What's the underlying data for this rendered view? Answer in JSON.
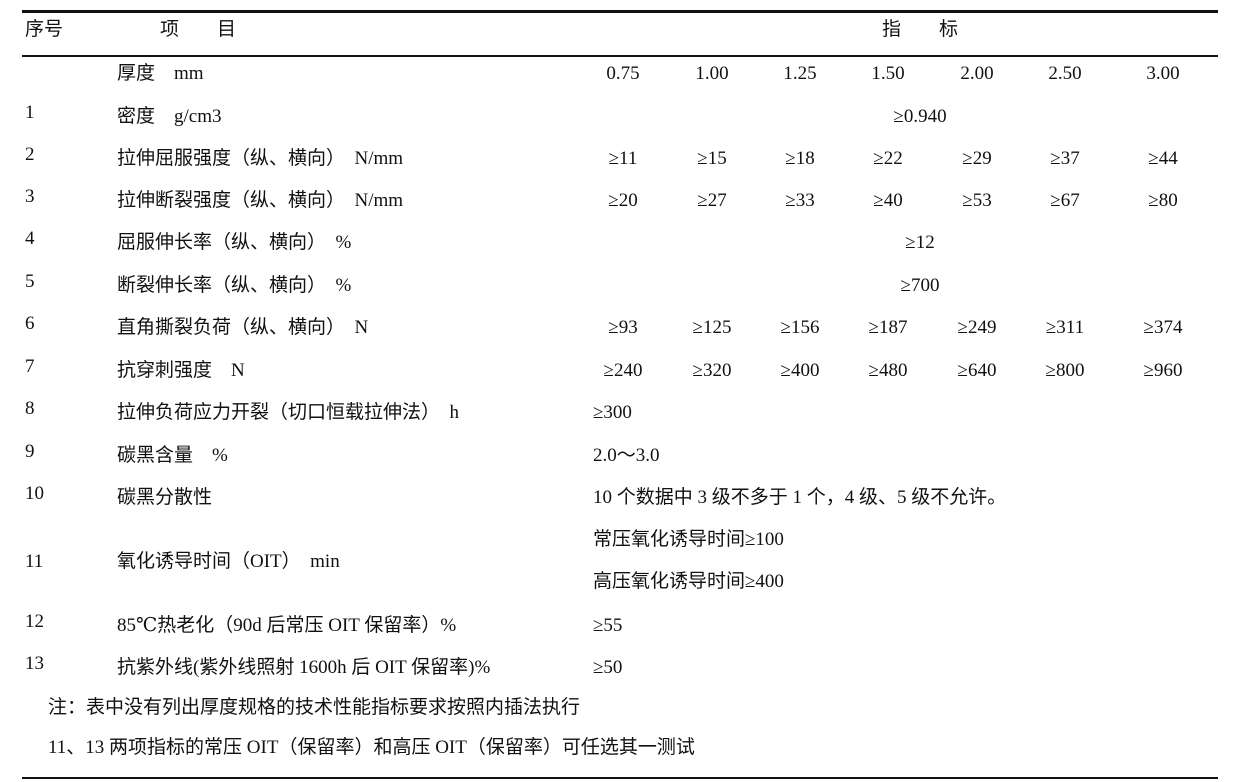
{
  "header": {
    "no": "序号",
    "item": "项　　目",
    "spec": "指　　标"
  },
  "thickness": {
    "label": "厚度　mm",
    "values": [
      "0.75",
      "1.00",
      "1.25",
      "1.50",
      "2.00",
      "2.50",
      "3.00"
    ]
  },
  "rows": [
    {
      "no": "1",
      "item": "密度　g/cm3",
      "merged": "≥0.940"
    },
    {
      "no": "2",
      "item": "拉伸屈服强度（纵、横向）　N/mm",
      "values": [
        "≥11",
        "≥15",
        "≥18",
        "≥22",
        "≥29",
        "≥37",
        "≥44"
      ]
    },
    {
      "no": "3",
      "item": "拉伸断裂强度（纵、横向）　N/mm",
      "values": [
        "≥20",
        "≥27",
        "≥33",
        "≥40",
        "≥53",
        "≥67",
        "≥80"
      ]
    },
    {
      "no": "4",
      "item": "屈服伸长率（纵、横向）　%",
      "merged": "≥12"
    },
    {
      "no": "5",
      "item": "断裂伸长率（纵、横向）　%",
      "merged": "≥700"
    },
    {
      "no": "6",
      "item": "直角撕裂负荷（纵、横向）　N",
      "values": [
        "≥93",
        "≥125",
        "≥156",
        "≥187",
        "≥249",
        "≥311",
        "≥374"
      ]
    },
    {
      "no": "7",
      "item": "抗穿刺强度　N",
      "values": [
        "≥240",
        "≥320",
        "≥400",
        "≥480",
        "≥640",
        "≥800",
        "≥960"
      ]
    },
    {
      "no": "8",
      "item": "拉伸负荷应力开裂（切口恒载拉伸法）　h",
      "left": "≥300"
    },
    {
      "no": "9",
      "item": "碳黑含量　%",
      "left": "2.0～3.0"
    },
    {
      "no": "10",
      "item": "碳黑分散性",
      "left": "10 个数据中 3 级不多于 1 个，4 级、5 级不允许。"
    },
    {
      "no": "11",
      "item": "氧化诱导时间（OIT）　min",
      "left": "常压氧化诱导时间≥100",
      "left2": "高压氧化诱导时间≥400"
    },
    {
      "no": "12",
      "item": "85℃热老化（90d 后常压 OIT 保留率）%",
      "left": "≥55"
    },
    {
      "no": "13",
      "item": "抗紫外线(紫外线照射 1600h 后 OIT 保留率)%",
      "left": "≥50"
    }
  ],
  "notes": [
    "注：表中没有列出厚度规格的技术性能指标要求按照内插法执行",
    "11、13 两项指标的常压 OIT（保留率）和高压 OIT（保留率）可任选其一测试"
  ]
}
